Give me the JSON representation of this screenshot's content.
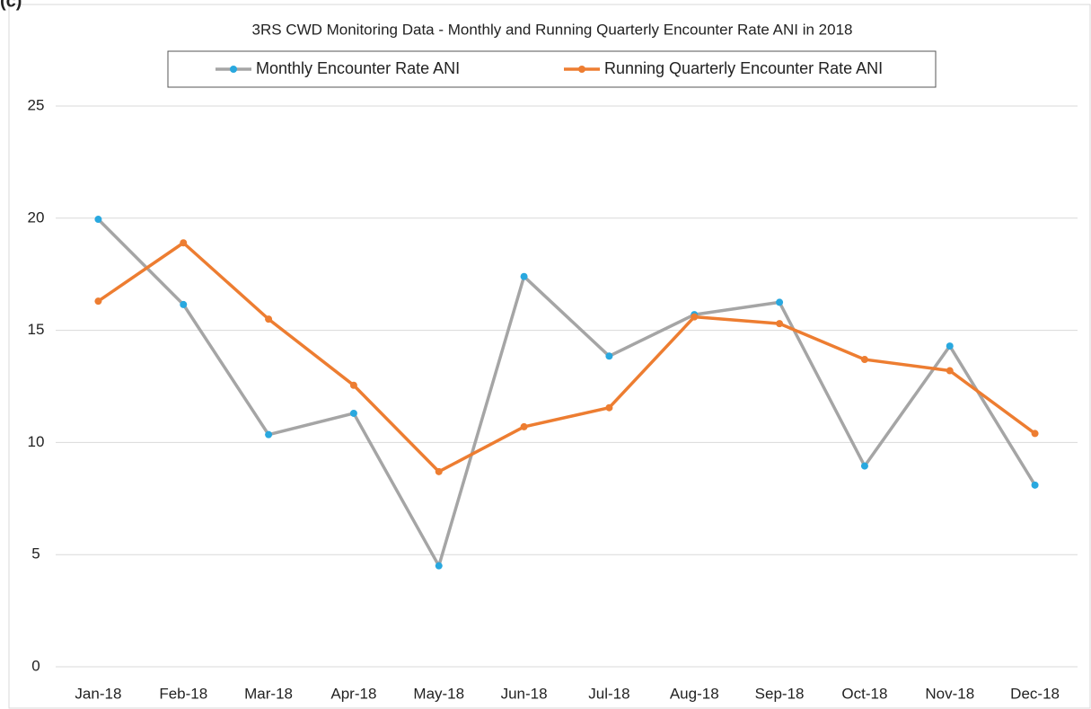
{
  "panel_label": "(c)",
  "chart_data": {
    "type": "line",
    "title": "3RS CWD Monitoring Data - Monthly and Running Quarterly Encounter Rate ANI in 2018",
    "categories": [
      "Jan-18",
      "Feb-18",
      "Mar-18",
      "Apr-18",
      "May-18",
      "Jun-18",
      "Jul-18",
      "Aug-18",
      "Sep-18",
      "Oct-18",
      "Nov-18",
      "Dec-18"
    ],
    "series": [
      {
        "name": "Monthly Encounter Rate ANI",
        "color": "#a5a5a5",
        "marker_color": "#29a8df",
        "values": [
          19.95,
          16.15,
          10.35,
          11.3,
          4.5,
          17.4,
          13.85,
          15.7,
          16.25,
          8.95,
          14.3,
          8.1
        ]
      },
      {
        "name": "Running Quarterly Encounter Rate ANI",
        "color": "#ed7d31",
        "marker_color": "#ed7d31",
        "values": [
          16.3,
          18.9,
          15.5,
          12.55,
          8.7,
          10.7,
          11.55,
          15.6,
          15.3,
          13.7,
          13.2,
          10.4
        ]
      }
    ],
    "ylim": [
      0,
      25
    ],
    "yticks": [
      0,
      5,
      10,
      15,
      20,
      25
    ],
    "grid": true,
    "legend": "top"
  }
}
